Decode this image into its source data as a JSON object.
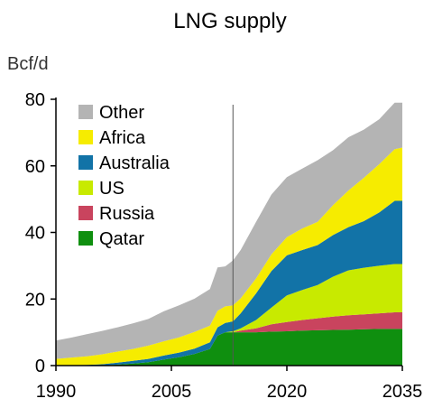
{
  "chart_data": {
    "type": "area",
    "stacked": true,
    "title": "LNG supply",
    "ylabel": "Bcf/d",
    "xlabel": "",
    "xlim": [
      1990,
      2035
    ],
    "ylim": [
      0,
      80
    ],
    "x_ticks": [
      1990,
      2005,
      2020,
      2035
    ],
    "y_ticks": [
      0,
      20,
      40,
      60,
      80
    ],
    "reference_line_x": 2013,
    "legend_position": "top-left",
    "x": [
      1990,
      1992,
      1994,
      1996,
      1998,
      2000,
      2002,
      2004,
      2006,
      2008,
      2010,
      2011,
      2012,
      2013,
      2014,
      2016,
      2018,
      2020,
      2022,
      2024,
      2026,
      2028,
      2030,
      2032,
      2034,
      2035
    ],
    "series": [
      {
        "name": "Qatar",
        "color": "#0f8f0f",
        "values": [
          0,
          0,
          0,
          0,
          0.3,
          0.6,
          1,
          1.8,
          2.5,
          3.5,
          5,
          9,
          10,
          10,
          10,
          10,
          10.2,
          10.3,
          10.5,
          10.6,
          10.7,
          10.8,
          10.9,
          11,
          11,
          11
        ]
      },
      {
        "name": "Russia",
        "color": "#c9445e",
        "values": [
          0,
          0,
          0,
          0,
          0,
          0,
          0,
          0,
          0,
          0,
          0,
          0,
          0,
          0,
          0.5,
          1.2,
          2.2,
          2.8,
          3.2,
          3.6,
          4,
          4.3,
          4.5,
          4.7,
          5,
          5
        ]
      },
      {
        "name": "US",
        "color": "#c8ea00",
        "values": [
          0,
          0,
          0,
          0,
          0,
          0,
          0,
          0,
          0,
          0,
          0,
          0,
          0,
          0.3,
          0.7,
          2.5,
          5,
          8,
          9,
          10,
          12,
          13.5,
          14,
          14.3,
          14.5,
          14.5
        ]
      },
      {
        "name": "Australia",
        "color": "#1273a7",
        "values": [
          0,
          0.1,
          0.2,
          0.4,
          0.6,
          0.8,
          1,
          1.2,
          1.4,
          1.6,
          2,
          2.5,
          2.8,
          3,
          4.5,
          8,
          11,
          12,
          12,
          12,
          12.5,
          13,
          14,
          16,
          19,
          19
        ]
      },
      {
        "name": "Africa",
        "color": "#f6ec00",
        "values": [
          2,
          2.3,
          2.6,
          3,
          3.3,
          3.6,
          4,
          4.3,
          4.6,
          5,
          5,
          5,
          5,
          4.8,
          4.5,
          4.5,
          5,
          5.5,
          6.5,
          7,
          9,
          11,
          13,
          14.5,
          15.5,
          16
        ]
      },
      {
        "name": "Other",
        "color": "#b4b4b4",
        "values": [
          5.5,
          6,
          6.6,
          7,
          7.3,
          7.7,
          8,
          9,
          9.6,
          10,
          11,
          13,
          12,
          13.5,
          14.5,
          17,
          18,
          18,
          18,
          18.5,
          16.5,
          16,
          14.5,
          13.5,
          14,
          13.5
        ]
      }
    ]
  }
}
